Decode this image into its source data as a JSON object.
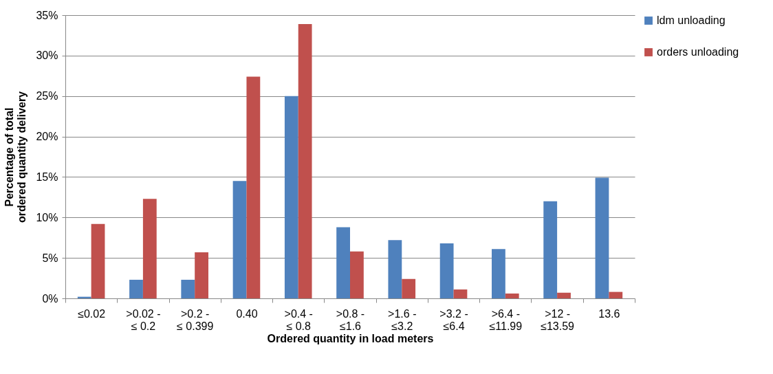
{
  "chart_data": {
    "type": "bar",
    "xlabel": "Ordered quantity in load meters",
    "ylabel": "Percentage of total ordered quantity delivery",
    "categories": [
      "≤0.02",
      ">0.02 - ≤ 0.2",
      ">0.2 - ≤ 0.399",
      "0.40",
      ">0.4 - ≤ 0.8",
      ">0.8 - ≤1.6",
      ">1.6 - ≤3.2",
      ">3.2 - ≤6.4",
      ">6.4 - ≤11.99",
      ">12 - ≤13.59",
      "13.6"
    ],
    "series": [
      {
        "name": "ldm unloading",
        "color": "#4f81bd",
        "values": [
          0.2,
          2.3,
          2.3,
          14.5,
          25.0,
          8.8,
          7.2,
          6.8,
          6.1,
          12.0,
          14.9
        ]
      },
      {
        "name": "orders unloading",
        "color": "#c0504d",
        "values": [
          9.2,
          12.3,
          5.7,
          27.4,
          33.9,
          5.8,
          2.4,
          1.1,
          0.6,
          0.7,
          0.8
        ]
      }
    ],
    "ylim": [
      0,
      35
    ],
    "yticks": [
      {
        "value": 0,
        "label": "0%"
      },
      {
        "value": 5,
        "label": "5%"
      },
      {
        "value": 10,
        "label": "10%"
      },
      {
        "value": 15,
        "label": "15%"
      },
      {
        "value": 20,
        "label": "20%"
      },
      {
        "value": 25,
        "label": "25%"
      },
      {
        "value": 30,
        "label": "30%"
      },
      {
        "value": 35,
        "label": "35%"
      }
    ],
    "grid": "y",
    "legend": "right"
  }
}
